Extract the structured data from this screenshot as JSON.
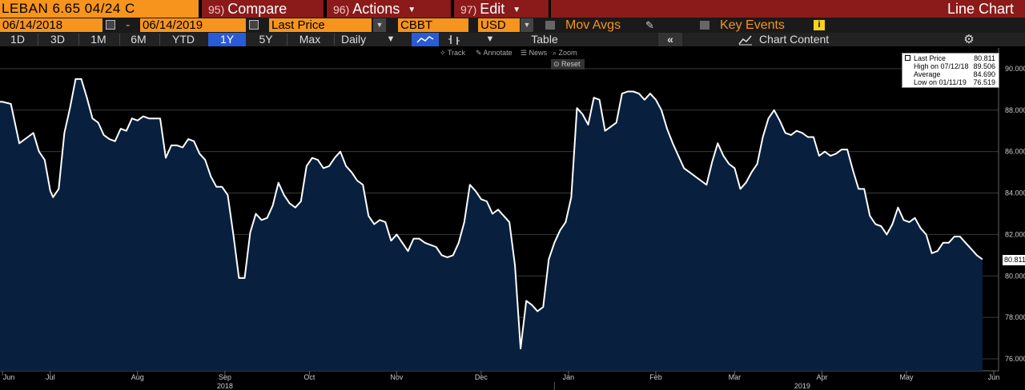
{
  "header": {
    "ticker": "LEBAN 6.65 04/24 C",
    "compare_num": "95)",
    "compare_label": "Compare",
    "actions_num": "96)",
    "actions_label": "Actions",
    "edit_num": "97)",
    "edit_label": "Edit",
    "chart_type": "Line Chart"
  },
  "params": {
    "start_date": "06/14/2018",
    "dash": "-",
    "end_date": "06/14/2019",
    "field": "Last Price",
    "source": "CBBT",
    "currency": "USD",
    "mov_avgs": "Mov Avgs",
    "key_events": "Key Events",
    "info_icon_text": "i"
  },
  "toolbar": {
    "ranges": [
      "1D",
      "3D",
      "1M",
      "6M",
      "YTD",
      "1Y",
      "5Y",
      "Max"
    ],
    "active_range": "1Y",
    "frequency": "Daily",
    "table_label": "Table",
    "chart_content_label": "Chart Content",
    "collapse_icon": "«"
  },
  "chart_tools": {
    "track": "Track",
    "annotate": "Annotate",
    "news": "News",
    "zoom": "Zoom",
    "reset": "Reset"
  },
  "legend": {
    "last_price_label": "Last Price",
    "last_price_value": "80.811",
    "high_label": "High on 07/12/18",
    "high_value": "89.506",
    "average_label": "Average",
    "average_value": "84.690",
    "low_label": "Low on 01/11/19",
    "low_value": "76.519"
  },
  "last_badge": "80.811",
  "chart_data": {
    "type": "area",
    "title": "",
    "xlabel": "",
    "ylabel": "",
    "ylim": [
      75.5,
      91
    ],
    "yticks": [
      "76.000",
      "78.000",
      "80.000",
      "82.000",
      "84.000",
      "86.000",
      "88.000",
      "90.000"
    ],
    "ytick_values": [
      76,
      78,
      80,
      82,
      84,
      86,
      88,
      90
    ],
    "month_labels": [
      "Jun",
      "Jul",
      "Aug",
      "Sep",
      "Oct",
      "Nov",
      "Dec",
      "Jan",
      "Feb",
      "Mar",
      "Apr",
      "May",
      "Jun"
    ],
    "month_day_index": [
      0,
      17,
      48,
      79,
      109,
      140,
      170,
      201,
      232,
      260,
      291,
      321,
      352
    ],
    "year_labels": [
      "2018",
      "2019"
    ],
    "year_label_day_index": [
      79,
      284
    ],
    "colors": {
      "line": "#ffffff",
      "fill": "#08203e",
      "grid": "#3a3a3a"
    },
    "series": [
      {
        "values": [
          [
            0,
            88.4
          ],
          [
            3,
            88.3
          ],
          [
            6,
            86.4
          ],
          [
            9,
            86.7
          ],
          [
            11,
            86.9
          ],
          [
            13,
            86.0
          ],
          [
            15,
            85.6
          ],
          [
            17,
            84.1
          ],
          [
            18,
            83.8
          ],
          [
            20,
            84.2
          ],
          [
            22,
            86.9
          ],
          [
            24,
            88.1
          ],
          [
            26,
            89.5
          ],
          [
            28,
            89.5
          ],
          [
            30,
            88.6
          ],
          [
            32,
            87.6
          ],
          [
            34,
            87.4
          ],
          [
            36,
            86.8
          ],
          [
            38,
            86.6
          ],
          [
            40,
            86.5
          ],
          [
            42,
            87.1
          ],
          [
            44,
            87.0
          ],
          [
            46,
            87.6
          ],
          [
            48,
            87.5
          ],
          [
            50,
            87.7
          ],
          [
            52,
            87.6
          ],
          [
            54,
            87.6
          ],
          [
            56,
            87.6
          ],
          [
            58,
            85.7
          ],
          [
            60,
            86.3
          ],
          [
            62,
            86.3
          ],
          [
            64,
            86.2
          ],
          [
            66,
            86.6
          ],
          [
            68,
            86.5
          ],
          [
            70,
            85.9
          ],
          [
            72,
            85.6
          ],
          [
            74,
            84.8
          ],
          [
            76,
            84.3
          ],
          [
            78,
            84.3
          ],
          [
            80,
            83.9
          ],
          [
            82,
            82.0
          ],
          [
            84,
            79.9
          ],
          [
            86,
            79.9
          ],
          [
            88,
            82.1
          ],
          [
            90,
            83.0
          ],
          [
            92,
            82.7
          ],
          [
            94,
            82.8
          ],
          [
            96,
            83.4
          ],
          [
            98,
            84.5
          ],
          [
            100,
            83.9
          ],
          [
            102,
            83.5
          ],
          [
            104,
            83.3
          ],
          [
            106,
            83.6
          ],
          [
            108,
            85.3
          ],
          [
            110,
            85.7
          ],
          [
            112,
            85.6
          ],
          [
            114,
            85.2
          ],
          [
            116,
            85.3
          ],
          [
            118,
            85.7
          ],
          [
            120,
            86.0
          ],
          [
            122,
            85.3
          ],
          [
            124,
            85.0
          ],
          [
            126,
            84.6
          ],
          [
            128,
            84.4
          ],
          [
            130,
            82.9
          ],
          [
            132,
            82.5
          ],
          [
            134,
            82.7
          ],
          [
            136,
            82.6
          ],
          [
            138,
            81.7
          ],
          [
            140,
            82.0
          ],
          [
            142,
            81.6
          ],
          [
            144,
            81.2
          ],
          [
            146,
            81.8
          ],
          [
            148,
            81.8
          ],
          [
            150,
            81.6
          ],
          [
            152,
            81.5
          ],
          [
            154,
            81.4
          ],
          [
            156,
            81.0
          ],
          [
            158,
            80.9
          ],
          [
            160,
            81.0
          ],
          [
            162,
            81.6
          ],
          [
            164,
            82.6
          ],
          [
            166,
            84.4
          ],
          [
            168,
            84.1
          ],
          [
            170,
            83.7
          ],
          [
            172,
            83.6
          ],
          [
            174,
            83.0
          ],
          [
            176,
            83.2
          ],
          [
            178,
            82.9
          ],
          [
            180,
            82.6
          ],
          [
            182,
            80.5
          ],
          [
            184,
            76.5
          ],
          [
            186,
            78.8
          ],
          [
            188,
            78.6
          ],
          [
            190,
            78.3
          ],
          [
            192,
            78.5
          ],
          [
            194,
            80.8
          ],
          [
            196,
            81.6
          ],
          [
            198,
            82.2
          ],
          [
            200,
            82.6
          ],
          [
            202,
            83.8
          ],
          [
            204,
            88.1
          ],
          [
            206,
            87.8
          ],
          [
            208,
            87.3
          ],
          [
            210,
            88.6
          ],
          [
            212,
            88.5
          ],
          [
            214,
            87.0
          ],
          [
            216,
            87.2
          ],
          [
            218,
            87.4
          ],
          [
            220,
            88.8
          ],
          [
            222,
            88.9
          ],
          [
            224,
            88.9
          ],
          [
            226,
            88.8
          ],
          [
            228,
            88.5
          ],
          [
            230,
            88.8
          ],
          [
            232,
            88.5
          ],
          [
            234,
            88.0
          ],
          [
            236,
            87.1
          ],
          [
            238,
            86.4
          ],
          [
            240,
            85.8
          ],
          [
            242,
            85.2
          ],
          [
            244,
            85.0
          ],
          [
            246,
            84.8
          ],
          [
            248,
            84.6
          ],
          [
            250,
            84.4
          ],
          [
            252,
            85.5
          ],
          [
            254,
            86.4
          ],
          [
            256,
            85.8
          ],
          [
            258,
            85.4
          ],
          [
            260,
            85.2
          ],
          [
            262,
            84.2
          ],
          [
            264,
            84.5
          ],
          [
            266,
            85.0
          ],
          [
            268,
            85.4
          ],
          [
            270,
            86.7
          ],
          [
            272,
            87.6
          ],
          [
            274,
            88.0
          ],
          [
            276,
            87.5
          ],
          [
            278,
            86.9
          ],
          [
            280,
            86.8
          ],
          [
            282,
            87.0
          ],
          [
            284,
            86.9
          ],
          [
            286,
            86.7
          ],
          [
            288,
            86.7
          ],
          [
            290,
            85.8
          ],
          [
            292,
            86.0
          ],
          [
            294,
            85.8
          ],
          [
            296,
            85.9
          ],
          [
            298,
            86.1
          ],
          [
            300,
            86.1
          ],
          [
            302,
            85.1
          ],
          [
            304,
            84.2
          ],
          [
            306,
            84.2
          ],
          [
            308,
            82.9
          ],
          [
            310,
            82.5
          ],
          [
            312,
            82.4
          ],
          [
            314,
            82.0
          ],
          [
            316,
            82.5
          ],
          [
            318,
            83.3
          ],
          [
            320,
            82.7
          ],
          [
            322,
            82.6
          ],
          [
            324,
            82.8
          ],
          [
            326,
            82.3
          ],
          [
            328,
            82.0
          ],
          [
            330,
            81.1
          ],
          [
            332,
            81.2
          ],
          [
            334,
            81.6
          ],
          [
            336,
            81.6
          ],
          [
            338,
            81.9
          ],
          [
            340,
            81.9
          ],
          [
            342,
            81.6
          ],
          [
            344,
            81.3
          ],
          [
            346,
            81.0
          ],
          [
            348,
            80.8
          ]
        ]
      }
    ]
  }
}
